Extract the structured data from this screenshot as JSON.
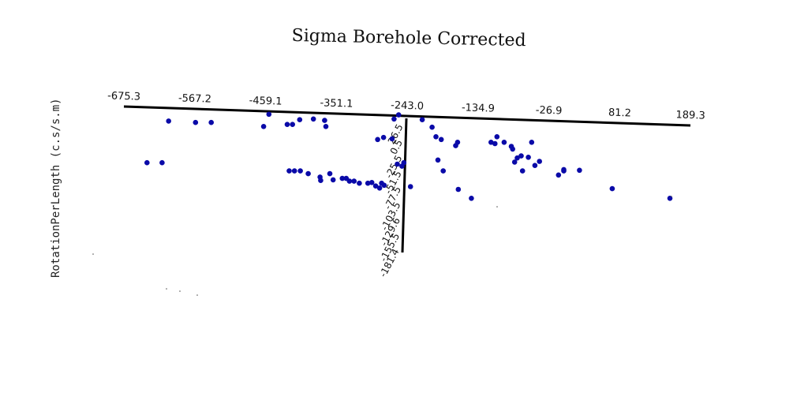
{
  "chart_data": {
    "type": "scatter",
    "title": "Sigma Borehole Corrected",
    "ylabel": "RotationPerLength (c.s/s.m)",
    "x_ticks": [
      "-675.3",
      "-567.2",
      "-459.1",
      "-351.1",
      "-243.0",
      "-134.9",
      "-26.9",
      "81.2",
      "189.3"
    ],
    "y_ticks": [
      "26.5",
      "0.5",
      "-25.5",
      "-51.5",
      "-77.5",
      "-103.5",
      "-129.6",
      "-155.5",
      "-181.4"
    ],
    "xlim": [
      -675.3,
      189.3
    ],
    "ylim": [
      -181.4,
      26.5
    ],
    "point_color": "#0a0aa8",
    "points": [
      [
        -640,
        -50
      ],
      [
        -617,
        -50
      ],
      [
        -607,
        11
      ],
      [
        -566,
        9
      ],
      [
        -542,
        9
      ],
      [
        -462,
        3
      ],
      [
        -454,
        21
      ],
      [
        -426,
        6
      ],
      [
        -418,
        6
      ],
      [
        -407,
        13
      ],
      [
        -386,
        14
      ],
      [
        -369,
        12
      ],
      [
        -367,
        3
      ],
      [
        -423,
        -62
      ],
      [
        -415,
        -62
      ],
      [
        -406,
        -62
      ],
      [
        -394,
        -66
      ],
      [
        -376,
        -71
      ],
      [
        -375,
        -76
      ],
      [
        -361,
        -66
      ],
      [
        -356,
        -75
      ],
      [
        -342,
        -73
      ],
      [
        -336,
        -73
      ],
      [
        -331,
        -77
      ],
      [
        -324,
        -77
      ],
      [
        -316,
        -80
      ],
      [
        -303,
        -80
      ],
      [
        -297,
        -79
      ],
      [
        -291,
        -84
      ],
      [
        -285,
        -87
      ],
      [
        -282,
        -80
      ],
      [
        -278,
        -83
      ],
      [
        -288,
        -16
      ],
      [
        -279,
        -13
      ],
      [
        -266,
        -15
      ],
      [
        -263,
        14
      ],
      [
        -256,
        20
      ],
      [
        -258,
        -52
      ],
      [
        -251,
        -55
      ],
      [
        -248,
        -50
      ],
      [
        -238,
        -85
      ],
      [
        -220,
        13
      ],
      [
        -205,
        2
      ],
      [
        -199,
        -12
      ],
      [
        -191,
        -16
      ],
      [
        -196,
        -46
      ],
      [
        -188,
        -62
      ],
      [
        -169,
        -25
      ],
      [
        -166,
        -20
      ],
      [
        -165,
        -89
      ],
      [
        -145,
        -102
      ],
      [
        -115,
        -20
      ],
      [
        -109,
        -22
      ],
      [
        -106,
        -12
      ],
      [
        -95,
        -20
      ],
      [
        -84,
        -26
      ],
      [
        -82,
        -30
      ],
      [
        -79,
        -49
      ],
      [
        -75,
        -43
      ],
      [
        -69,
        -40
      ],
      [
        -67,
        -62
      ],
      [
        -58,
        -42
      ],
      [
        -53,
        -20
      ],
      [
        -48,
        -54
      ],
      [
        -41,
        -48
      ],
      [
        -12,
        -68
      ],
      [
        -4,
        -62
      ],
      [
        -4,
        -60
      ],
      [
        20,
        -61
      ],
      [
        70,
        -88
      ],
      [
        158,
        -102
      ]
    ]
  }
}
